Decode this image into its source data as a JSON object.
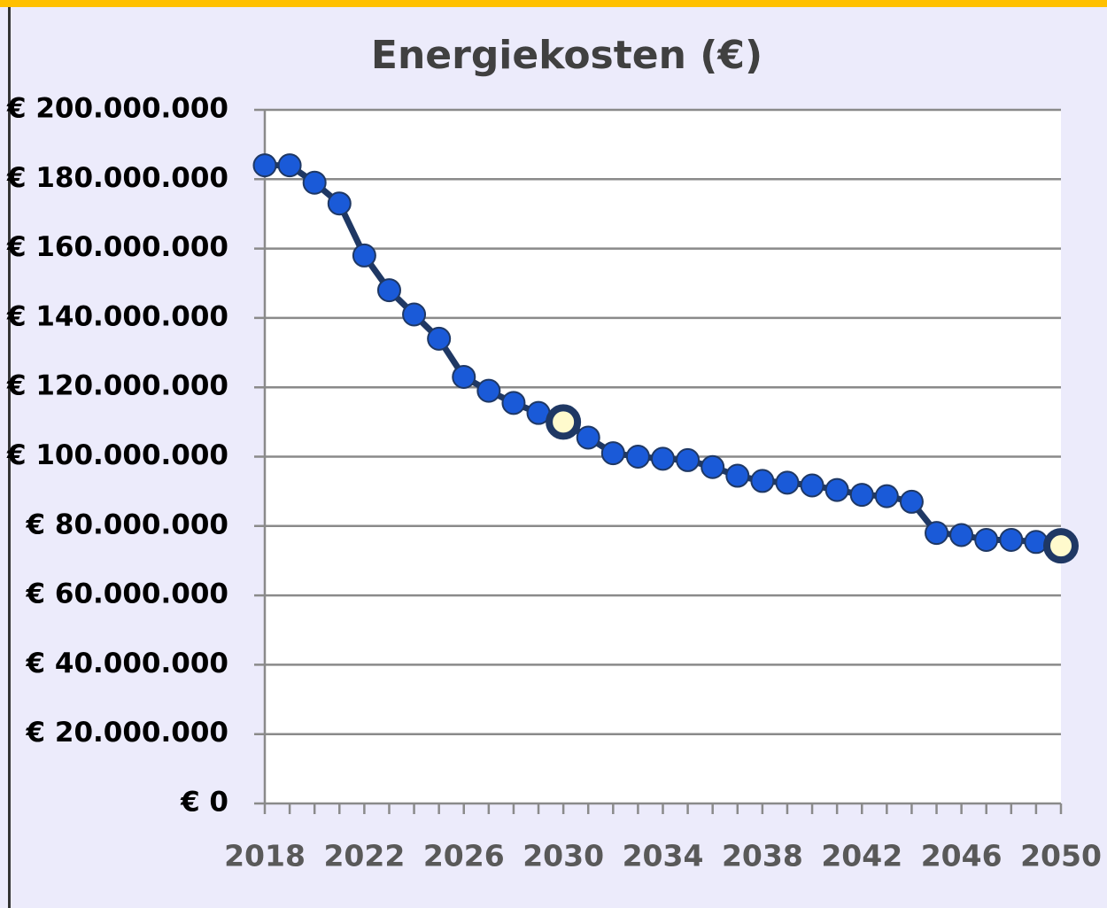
{
  "chart_data": {
    "type": "line",
    "title": "Energiekosten (€)",
    "x": [
      2018,
      2019,
      2020,
      2021,
      2022,
      2023,
      2024,
      2025,
      2026,
      2027,
      2028,
      2029,
      2030,
      2031,
      2032,
      2033,
      2034,
      2035,
      2036,
      2037,
      2038,
      2039,
      2040,
      2041,
      2042,
      2043,
      2044,
      2045,
      2046,
      2047,
      2048,
      2049,
      2050
    ],
    "series": [
      {
        "name": "Energiekosten",
        "color": "#1f3864",
        "marker_color": "#1a5ad8",
        "values": [
          184000000,
          184000000,
          179000000,
          173000000,
          158000000,
          148000000,
          141000000,
          134000000,
          123000000,
          119000000,
          115500000,
          112600000,
          110000000,
          105500000,
          101000000,
          100000000,
          99400000,
          99000000,
          97000000,
          94500000,
          93000000,
          92500000,
          91700000,
          90400000,
          89000000,
          88600000,
          87000000,
          78000000,
          77400000,
          76000000,
          76000000,
          75400000,
          74300000
        ]
      }
    ],
    "highlight_x": [
      2030,
      2050
    ],
    "highlight_color": "#fffacd",
    "xlim": [
      2018,
      2050
    ],
    "xticks": [
      2018,
      2022,
      2026,
      2030,
      2034,
      2038,
      2042,
      2046,
      2050
    ],
    "ylim": [
      0,
      200000000
    ],
    "yticks": [
      {
        "value": 0,
        "label": "€ 0"
      },
      {
        "value": 20000000,
        "label": "€ 20.000.000"
      },
      {
        "value": 40000000,
        "label": "€ 40.000.000"
      },
      {
        "value": 60000000,
        "label": "€ 60.000.000"
      },
      {
        "value": 80000000,
        "label": "€ 80.000.000"
      },
      {
        "value": 100000000,
        "label": "€ 100.000.000"
      },
      {
        "value": 120000000,
        "label": "€ 120.000.000"
      },
      {
        "value": 140000000,
        "label": "€ 140.000.000"
      },
      {
        "value": 160000000,
        "label": "€ 160.000.000"
      },
      {
        "value": 180000000,
        "label": "€ 180.000.000"
      },
      {
        "value": 200000000,
        "label": "€ 200.000.000"
      }
    ],
    "grid": true
  }
}
